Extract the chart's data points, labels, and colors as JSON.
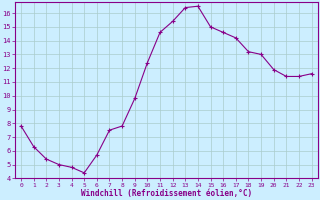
{
  "x": [
    0,
    1,
    2,
    3,
    4,
    5,
    6,
    7,
    8,
    9,
    10,
    11,
    12,
    13,
    14,
    15,
    16,
    17,
    18,
    19,
    20,
    21,
    22,
    23
  ],
  "y": [
    7.8,
    6.3,
    5.4,
    5.0,
    4.8,
    4.4,
    5.7,
    7.5,
    7.8,
    9.8,
    12.4,
    14.6,
    15.4,
    16.4,
    16.5,
    15.0,
    14.6,
    14.2,
    13.2,
    13.0,
    11.9,
    11.4,
    11.4,
    11.6
  ],
  "xlabel": "Windchill (Refroidissement éolien,°C)",
  "xlim": [
    -0.5,
    23.5
  ],
  "ylim": [
    4,
    16.8
  ],
  "yticks": [
    4,
    5,
    6,
    7,
    8,
    9,
    10,
    11,
    12,
    13,
    14,
    15,
    16
  ],
  "xticks": [
    0,
    1,
    2,
    3,
    4,
    5,
    6,
    7,
    8,
    9,
    10,
    11,
    12,
    13,
    14,
    15,
    16,
    17,
    18,
    19,
    20,
    21,
    22,
    23
  ],
  "line_color": "#880088",
  "marker": "+",
  "bg_color": "#CCEEFF",
  "grid_color": "#AACCCC",
  "label_color": "#880088",
  "tick_label_color": "#880088",
  "spine_color": "#880088"
}
